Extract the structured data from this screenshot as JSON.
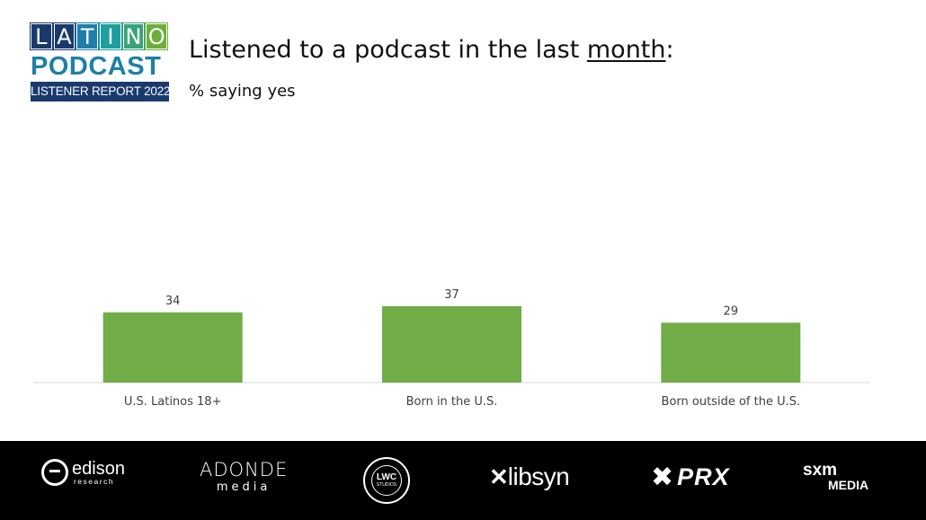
{
  "logo": {
    "letters": [
      "L",
      "A",
      "T",
      "I",
      "N",
      "O"
    ],
    "letter_colors": [
      "#1a3a6e",
      "#1a3a6e",
      "#1f7fa8",
      "#1f9e9e",
      "#3aa37a",
      "#6cae3c"
    ],
    "line2": "PODCAST",
    "line3": "LISTENER REPORT 2022"
  },
  "header": {
    "title_pre": "Listened to a podcast in the last ",
    "title_underlined": "month",
    "title_post": ":",
    "subtitle": "% saying yes"
  },
  "chart_data": {
    "type": "bar",
    "categories": [
      "U.S. Latinos 18+",
      "Born in the U.S.",
      "Born outside of the U.S."
    ],
    "values": [
      34,
      37,
      29
    ],
    "title": "Listened to a podcast in the last month:",
    "subtitle": "% saying yes",
    "ylim": [
      0,
      100
    ],
    "grid": false,
    "bar_color": "#70ad47",
    "data_labels": true
  },
  "footer": {
    "edison": {
      "name": "edison",
      "sub": "research"
    },
    "adonde": {
      "name": "ADONDE",
      "sub": "media"
    },
    "lwc": {
      "name": "LWC",
      "sub": "STUDIOS"
    },
    "libsyn": {
      "mark": "✕",
      "name": "libsyn"
    },
    "prx": {
      "mark": "✖",
      "name": "PRX"
    },
    "sxm": {
      "name": "sxm",
      "sub": "MEDIA"
    }
  },
  "colors": {
    "footer_bg": "#000000",
    "bar": "#70ad47",
    "axis": "#d9d9d9"
  }
}
